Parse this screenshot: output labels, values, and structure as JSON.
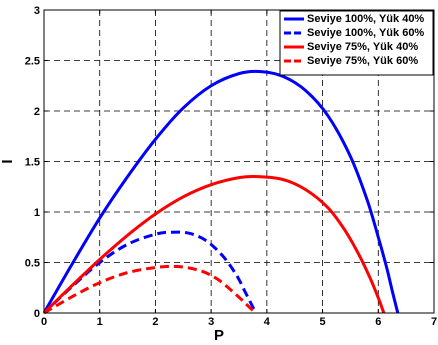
{
  "chart_data": {
    "type": "line",
    "xlabel": "P",
    "ylabel": "I",
    "xlim": [
      0,
      7
    ],
    "ylim": [
      0,
      3
    ],
    "xticks": [
      0,
      1,
      2,
      3,
      4,
      5,
      6,
      7
    ],
    "yticks": [
      0,
      0.5,
      1,
      1.5,
      2,
      2.5,
      3
    ],
    "xtick_labels": [
      "0",
      "1",
      "2",
      "3",
      "4",
      "5",
      "6",
      "7"
    ],
    "ytick_labels": [
      "0",
      "0.5",
      "1",
      "1.5",
      "2",
      "2.5",
      "3"
    ],
    "grid": true,
    "legend_position": "top-right",
    "series": [
      {
        "name": "Seviye 100%, Yük 40%",
        "color": "#0000ff",
        "style": "solid",
        "x": [
          0,
          0.5,
          1,
          1.5,
          2,
          2.5,
          3,
          3.5,
          3.9,
          4.3,
          4.7,
          5.1,
          5.5,
          5.8,
          6.0,
          6.15,
          6.25,
          6.35
        ],
        "y": [
          0,
          0.48,
          0.94,
          1.35,
          1.72,
          2.03,
          2.25,
          2.37,
          2.39,
          2.34,
          2.2,
          1.95,
          1.55,
          1.12,
          0.75,
          0.45,
          0.22,
          0
        ]
      },
      {
        "name": "Seviye 100%, Yük 60%",
        "color": "#0000ff",
        "style": "dashed",
        "x": [
          0,
          0.5,
          1,
          1.5,
          2,
          2.3,
          2.6,
          2.9,
          3.2,
          3.45,
          3.6,
          3.72,
          3.8
        ],
        "y": [
          0,
          0.26,
          0.5,
          0.68,
          0.78,
          0.8,
          0.79,
          0.72,
          0.57,
          0.38,
          0.22,
          0.09,
          0
        ]
      },
      {
        "name": "Seviye 75%, Yük 40%",
        "color": "#ff0000",
        "style": "solid",
        "x": [
          0,
          0.5,
          1,
          1.5,
          2,
          2.5,
          3,
          3.5,
          3.85,
          4.3,
          4.7,
          5.1,
          5.4,
          5.65,
          5.85,
          6.0,
          6.1
        ],
        "y": [
          0,
          0.27,
          0.53,
          0.77,
          0.98,
          1.15,
          1.27,
          1.34,
          1.35,
          1.32,
          1.22,
          1.04,
          0.82,
          0.58,
          0.35,
          0.15,
          0
        ]
      },
      {
        "name": "Seviye 75%, Yük 60%",
        "color": "#ff0000",
        "style": "dashed",
        "x": [
          0,
          0.5,
          1,
          1.5,
          2,
          2.4,
          2.8,
          3.1,
          3.35,
          3.55,
          3.7,
          3.8
        ],
        "y": [
          0,
          0.16,
          0.3,
          0.4,
          0.45,
          0.46,
          0.42,
          0.34,
          0.23,
          0.13,
          0.05,
          0
        ]
      }
    ]
  }
}
